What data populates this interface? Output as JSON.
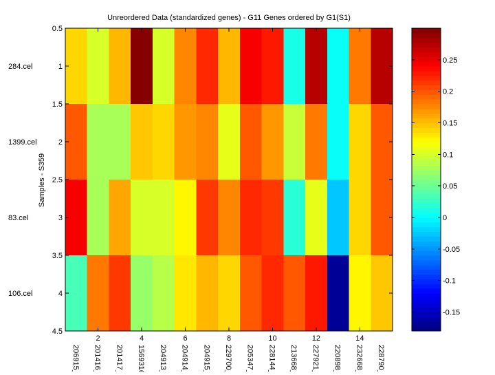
{
  "chart_data": {
    "type": "heatmap",
    "title": "Unreordered Data (standardized genes) - G11 Genes ordered by G1(S1)",
    "xlabel": "",
    "ylabel": "Samples - S359",
    "x_range": [
      0.5,
      15.5
    ],
    "y_range": [
      0.5,
      4.5
    ],
    "x_ticks": [
      2,
      4,
      6,
      8,
      10,
      12,
      14
    ],
    "x_tick_labels": [
      "2",
      "4",
      "6",
      "8",
      "10",
      "12",
      "14"
    ],
    "y_ticks": [
      0.5,
      1,
      1.5,
      2,
      2.5,
      3,
      3.5,
      4,
      4.5
    ],
    "y_tick_labels": [
      "0.5",
      "1",
      "1.5",
      "2",
      "2.5",
      "3",
      "3.5",
      "4",
      "4.5"
    ],
    "genes": [
      "206915_",
      "201416_",
      "201417_",
      "1569316",
      "204913_",
      "204914_",
      "204915_",
      "229700_",
      "205347_",
      "228144_",
      "213668_",
      "227921_",
      "220898_",
      "232668_",
      "228790_"
    ],
    "samples": [
      "284.cel",
      "1399.cel",
      "83.cel",
      "106.cel"
    ],
    "values": [
      [
        0.135,
        0.098,
        0.153,
        0.3,
        0.098,
        0.174,
        0.218,
        0.153,
        0.24,
        0.231,
        0.008,
        0.277,
        0.0,
        0.187,
        0.277
      ],
      [
        0.202,
        0.075,
        0.075,
        0.144,
        0.135,
        0.165,
        0.174,
        0.105,
        0.202,
        0.165,
        0.09,
        0.18,
        0.0,
        0.135,
        0.195
      ],
      [
        0.24,
        0.075,
        0.161,
        0.098,
        0.098,
        0.12,
        0.21,
        0.174,
        0.218,
        0.21,
        0.015,
        0.105,
        -0.024,
        0.138,
        0.195
      ],
      [
        0.03,
        0.18,
        0.21,
        0.068,
        0.083,
        0.131,
        0.157,
        0.136,
        0.195,
        0.218,
        0.195,
        0.225,
        -0.172,
        0.12,
        0.144
      ]
    ],
    "colormap": "jet",
    "color_limits": [
      -0.18,
      0.3
    ],
    "colorbar": {
      "ticks": [
        -0.15,
        -0.1,
        -0.05,
        0,
        0.05,
        0.1,
        0.15,
        0.2,
        0.25
      ],
      "tick_labels": [
        "-0.15",
        "-0.1",
        "-0.05",
        "0",
        "0.05",
        "0.1",
        "0.15",
        "0.2",
        "0.25"
      ],
      "placement": "right"
    },
    "grid": false
  }
}
